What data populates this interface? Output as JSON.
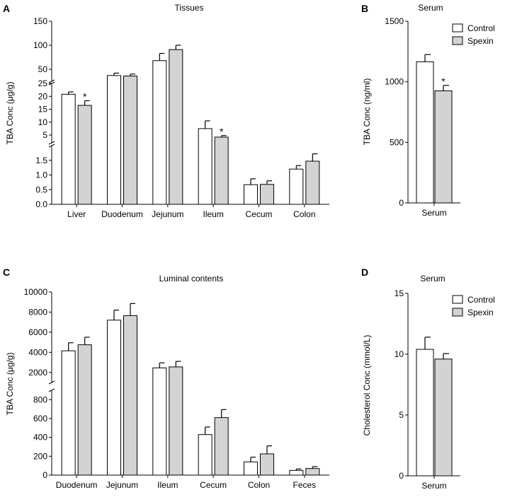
{
  "colors": {
    "control": "#ffffff",
    "spexin": "#d3d3d3",
    "stroke": "#000000"
  },
  "legend": {
    "labels": [
      "Control",
      "Spexin"
    ]
  },
  "chart_data": [
    {
      "panel": "A",
      "type": "bar",
      "title": "Tissues",
      "ylabel": "TBA Conc (μg/g)",
      "categories": [
        "Liver",
        "Duodenum",
        "Jejunum",
        "Ileum",
        "Cecum",
        "Colon"
      ],
      "series": [
        {
          "name": "Control",
          "values": [
            20.8,
            37,
            68,
            7.5,
            0.67,
            1.2
          ],
          "errors": [
            0.9,
            5,
            15,
            3,
            0.2,
            0.12
          ],
          "significant": [
            false,
            false,
            false,
            false,
            false,
            false
          ]
        },
        {
          "name": "Spexin",
          "values": [
            16.5,
            36,
            91,
            4.2,
            0.68,
            1.47
          ],
          "errors": [
            1.8,
            4,
            9,
            0.6,
            0.12,
            0.25
          ],
          "significant": [
            true,
            false,
            false,
            true,
            false,
            false
          ]
        }
      ],
      "segments": [
        {
          "range": [
            0,
            2
          ],
          "ticks": [
            "0.0",
            "0.5",
            "1.0",
            "1.5"
          ]
        },
        {
          "range": [
            2,
            25
          ],
          "ticks": [
            "5",
            "10",
            "15",
            "20",
            "25"
          ]
        },
        {
          "range": [
            25,
            150
          ],
          "ticks": [
            "50",
            "100",
            "150"
          ]
        }
      ]
    },
    {
      "panel": "B",
      "type": "bar",
      "title": "Serum",
      "ylabel": "TBA Conc (ng/ml)",
      "categories": [
        "Serum"
      ],
      "series": [
        {
          "name": "Control",
          "values": [
            1165
          ],
          "errors": [
            60
          ],
          "significant": [
            false
          ]
        },
        {
          "name": "Spexin",
          "values": [
            925
          ],
          "errors": [
            45
          ],
          "significant": [
            true
          ]
        }
      ],
      "ylim": [
        0,
        1500
      ],
      "ticks": [
        "0",
        "500",
        "1000",
        "1500"
      ]
    },
    {
      "panel": "C",
      "type": "bar",
      "title": "Luminal contents",
      "ylabel": "TBA Conc (μg/g)",
      "categories": [
        "Duodenum",
        "Jejunum",
        "Ileum",
        "Cecum",
        "Colon",
        "Feces"
      ],
      "series": [
        {
          "name": "Control",
          "values": [
            4150,
            7200,
            2450,
            430,
            140,
            50
          ],
          "errors": [
            800,
            1000,
            500,
            80,
            50,
            15
          ],
          "significant": [
            false,
            false,
            false,
            false,
            false,
            false
          ]
        },
        {
          "name": "Spexin",
          "values": [
            4750,
            7650,
            2550,
            610,
            225,
            70
          ],
          "errors": [
            750,
            1200,
            550,
            85,
            85,
            20
          ],
          "significant": [
            false,
            false,
            false,
            false,
            false,
            false
          ]
        }
      ],
      "segments": [
        {
          "range": [
            0,
            900
          ],
          "ticks": [
            "0",
            "200",
            "400",
            "600",
            "800"
          ]
        },
        {
          "range": [
            1000,
            10000
          ],
          "ticks": [
            "2000",
            "4000",
            "6000",
            "8000",
            "10000"
          ]
        }
      ]
    },
    {
      "panel": "D",
      "type": "bar",
      "title": "Serum",
      "ylabel": "Cholesterol Conc (mmol/L)",
      "categories": [
        "Serum"
      ],
      "series": [
        {
          "name": "Control",
          "values": [
            10.4
          ],
          "errors": [
            1.0
          ],
          "significant": [
            false
          ]
        },
        {
          "name": "Spexin",
          "values": [
            9.6
          ],
          "errors": [
            0.45
          ],
          "significant": [
            false
          ]
        }
      ],
      "ylim": [
        0,
        15
      ],
      "ticks": [
        "0",
        "5",
        "10",
        "15"
      ]
    }
  ]
}
